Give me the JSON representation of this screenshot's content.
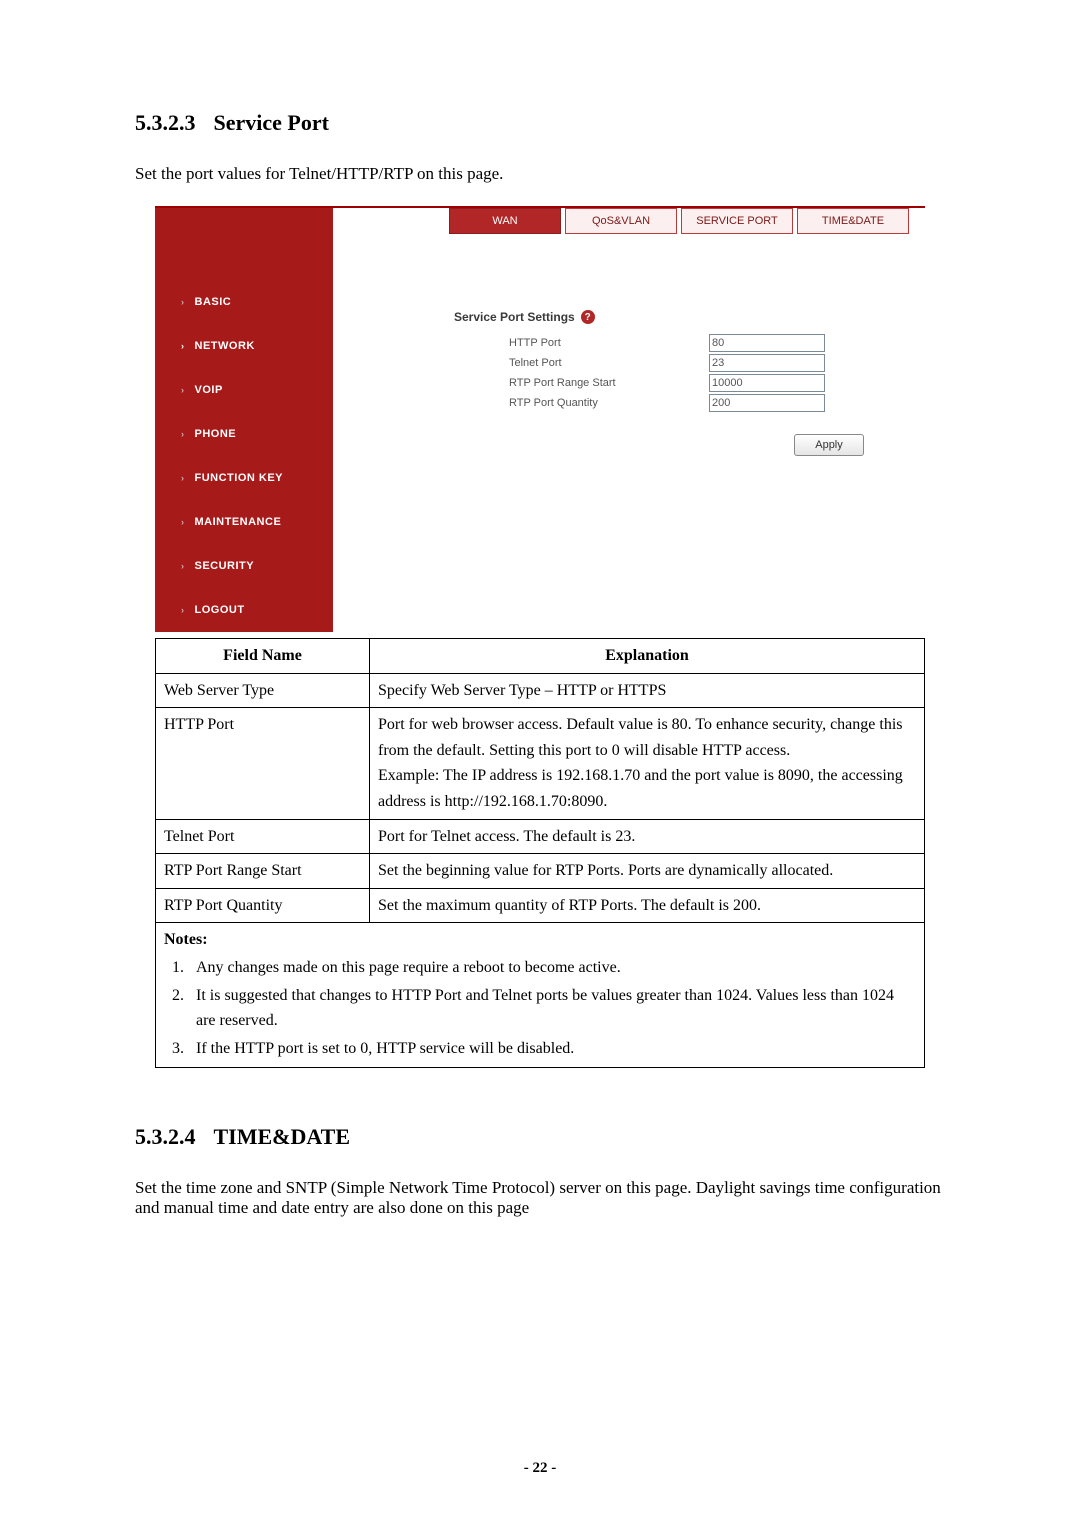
{
  "section1": {
    "number": "5.3.2.3",
    "title": "Service Port",
    "intro": "Set the port values for Telnet/HTTP/RTP on this page."
  },
  "ui": {
    "sidebar": {
      "items": [
        {
          "label": "BASIC"
        },
        {
          "label": "NETWORK"
        },
        {
          "label": "VOIP"
        },
        {
          "label": "PHONE"
        },
        {
          "label": "FUNCTION KEY"
        },
        {
          "label": "MAINTENANCE"
        },
        {
          "label": "SECURITY"
        },
        {
          "label": "LOGOUT"
        }
      ],
      "active_index": 1
    },
    "tabs": {
      "items": [
        {
          "label": "WAN"
        },
        {
          "label": "QoS&VLAN"
        },
        {
          "label": "SERVICE PORT"
        },
        {
          "label": "TIME&DATE"
        }
      ],
      "active_index": 0
    },
    "panel": {
      "title": "Service Port Settings",
      "help_glyph": "?",
      "fields": [
        {
          "label": "HTTP Port",
          "value": "80"
        },
        {
          "label": "Telnet Port",
          "value": "23"
        },
        {
          "label": "RTP Port Range Start",
          "value": "10000"
        },
        {
          "label": "RTP Port Quantity",
          "value": "200"
        }
      ],
      "apply_label": "Apply"
    }
  },
  "table": {
    "head": {
      "field": "Field Name",
      "exp": "Explanation"
    },
    "rows": [
      {
        "field": "Web Server Type",
        "exp": "Specify Web Server Type – HTTP or HTTPS"
      },
      {
        "field": "HTTP Port",
        "exp": "Port for web browser access. Default value is 80. To enhance security, change this from the default. Setting this port to 0 will disable HTTP access.\nExample: The IP address is 192.168.1.70 and the port value is 8090, the accessing address is http://192.168.1.70:8090."
      },
      {
        "field": "Telnet Port",
        "exp": "Port for Telnet access.   The default is 23."
      },
      {
        "field": "RTP Port Range Start",
        "exp": "Set the beginning value for RTP Ports. Ports are dynamically allocated."
      },
      {
        "field": "RTP Port Quantity",
        "exp": "Set the maximum quantity of RTP Ports.   The default is 200."
      }
    ],
    "notes_title": "Notes:",
    "notes": [
      "Any changes made on this page require a reboot to become active.",
      "It is suggested that changes to HTTP Port and Telnet ports be values greater than 1024. Values less than 1024 are reserved.",
      "If the HTTP port is set to 0, HTTP service will be disabled."
    ]
  },
  "section2": {
    "number": "5.3.2.4",
    "title": "TIME&DATE",
    "intro": "Set the time zone and SNTP (Simple Network Time Protocol) server on this page.   Daylight savings time configuration and manual time and date entry are also done on this page"
  },
  "page_number": "- 22 -",
  "colors": {
    "brand_red": "#a71a1a",
    "tab_active_bg": "#b12626",
    "tab_inactive_bg": "#fcefef",
    "tab_border": "#b93b3b",
    "border_black": "#000000"
  }
}
